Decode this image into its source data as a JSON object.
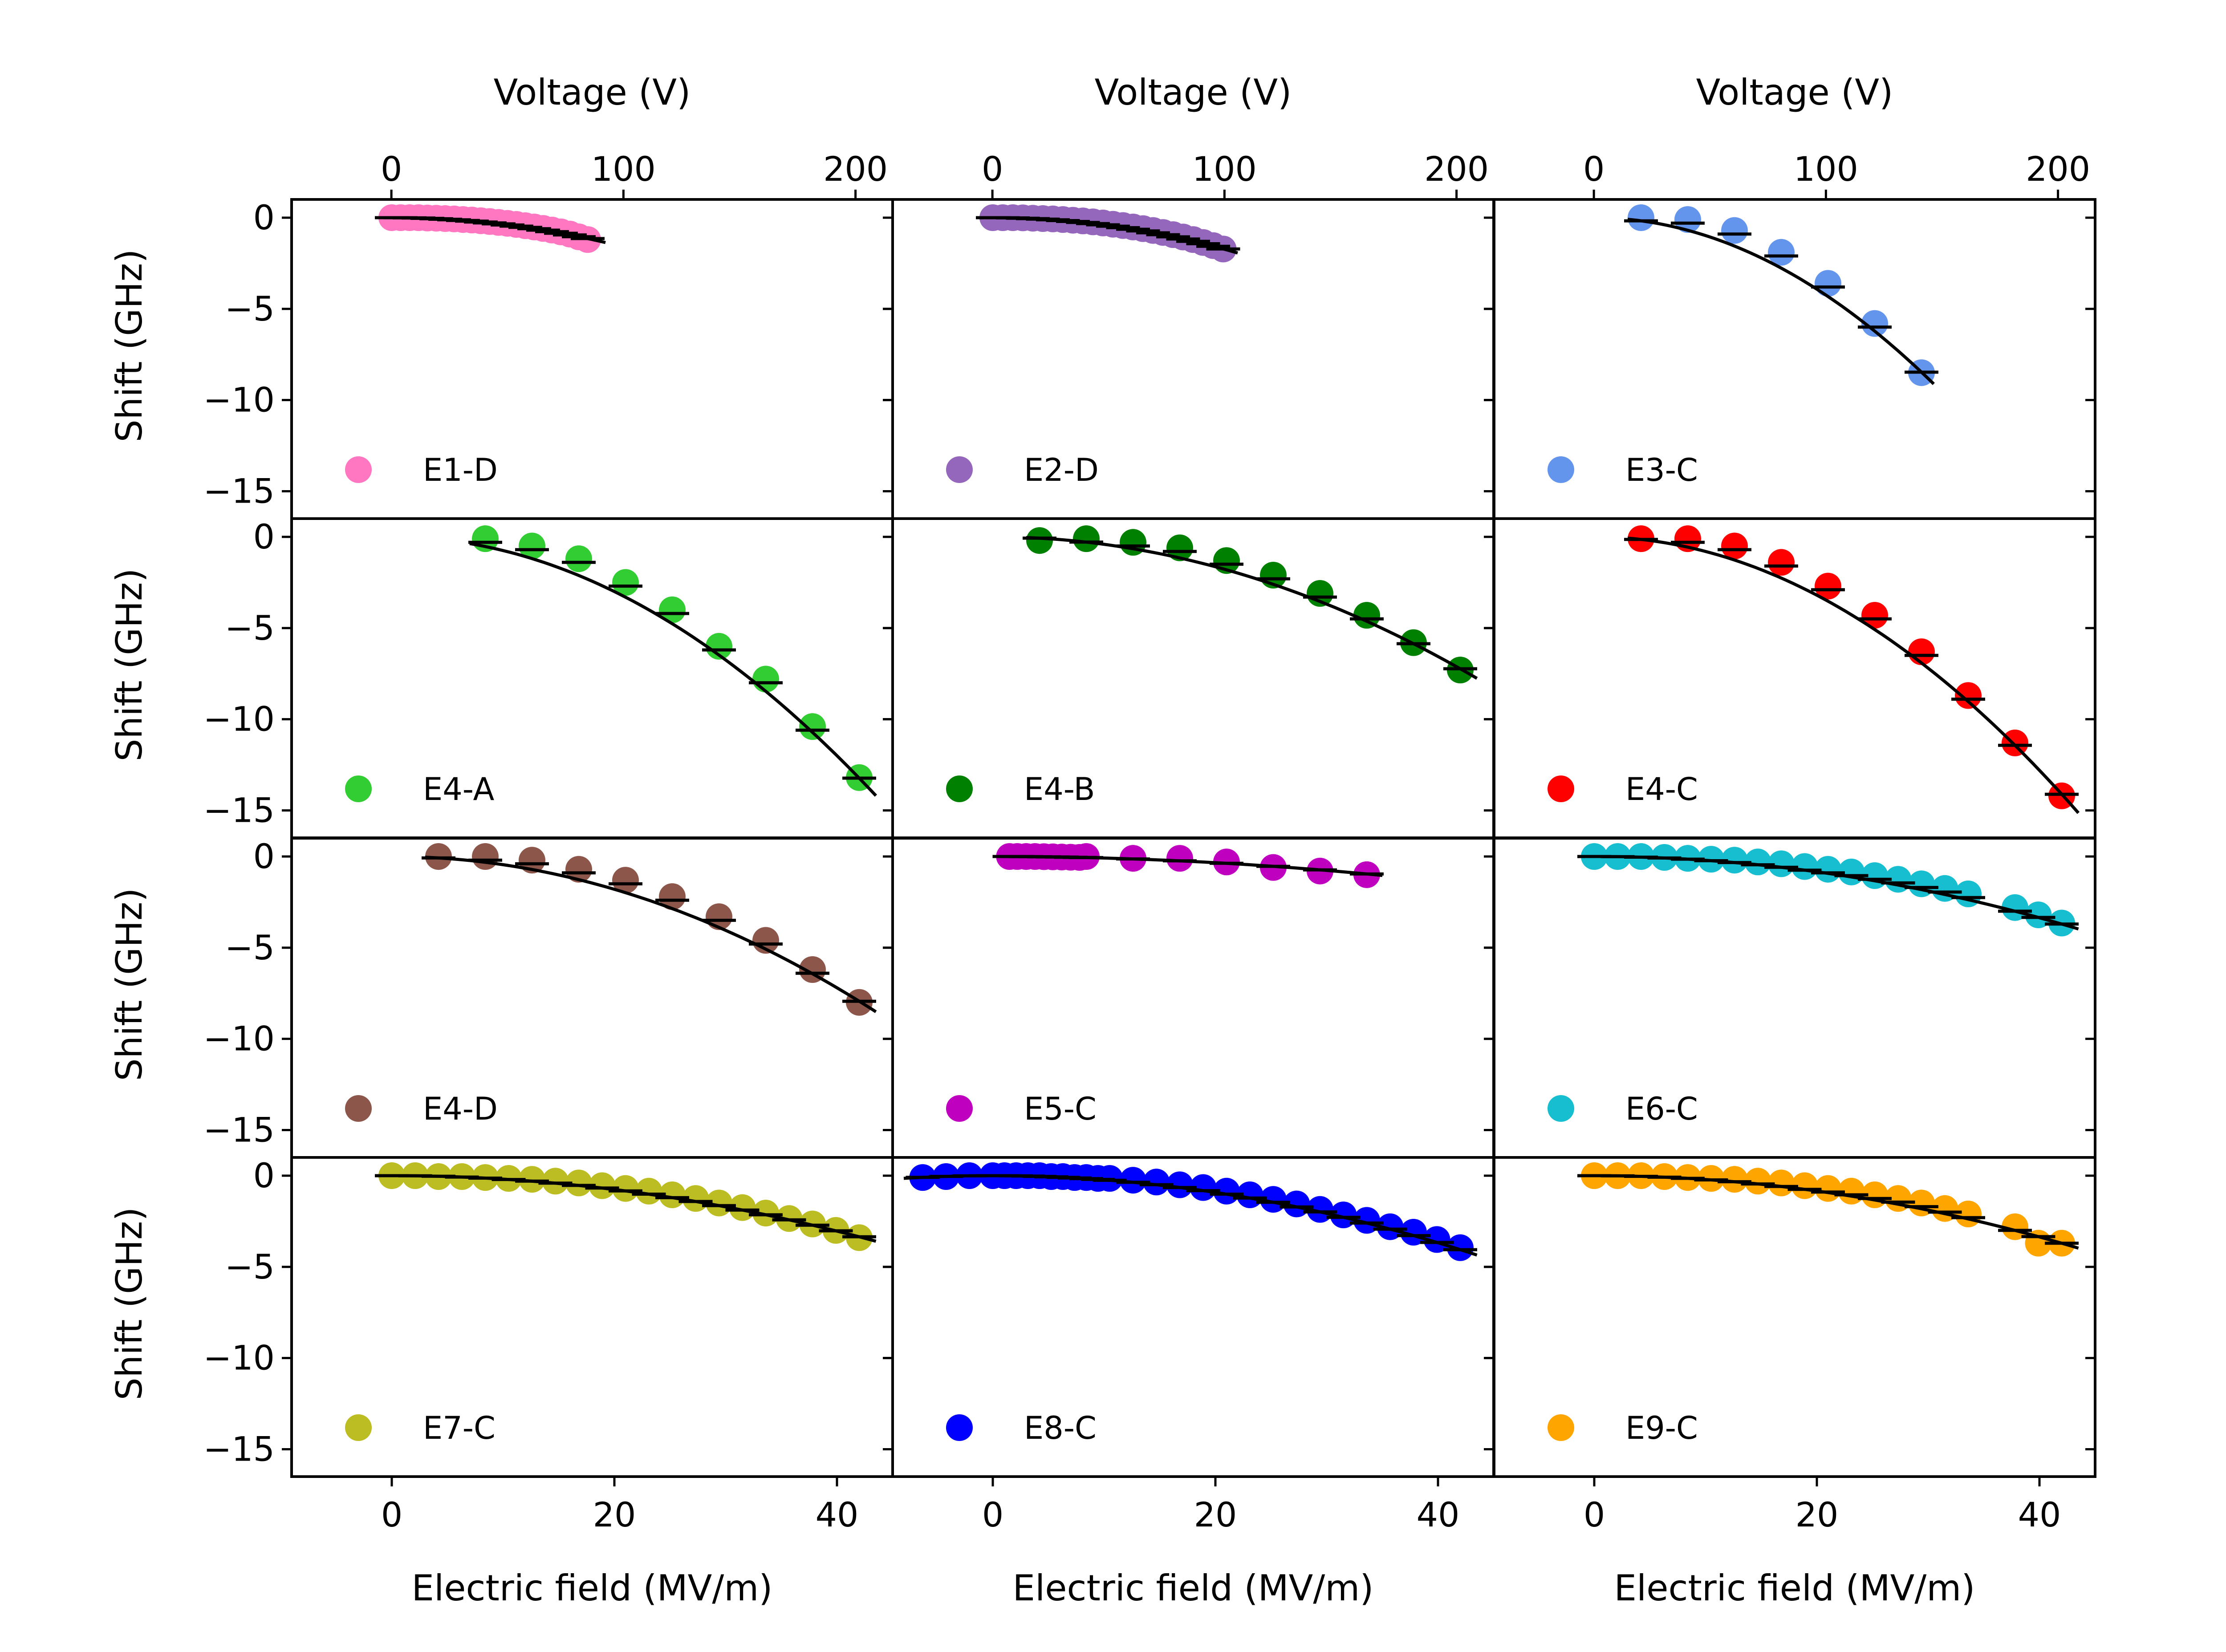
{
  "figure": {
    "top_axis_label": "Voltage (V)",
    "bottom_axis_label": "Electric field (MV/m)",
    "left_axis_label": "Shift (GHz)",
    "top_ticks": [
      "0",
      "100",
      "200"
    ],
    "bottom_ticks": [
      "0",
      "20",
      "40"
    ],
    "left_ticks": [
      "0",
      "−5",
      "−10",
      "−15"
    ]
  },
  "chart_data": {
    "type": "scatter",
    "layout": "grid 4 rows x 3 columns, shared axes",
    "xlabel": "Electric field (MV/m)",
    "x2label": "Voltage (V)",
    "ylabel": "Shift (GHz)",
    "xlim": [
      -9,
      45
    ],
    "x2lim": [
      -43,
      216
    ],
    "ylim": [
      -16.5,
      1
    ],
    "x_ticks": [
      0,
      20,
      40
    ],
    "x2_ticks": [
      0,
      100,
      200
    ],
    "y_ticks": [
      0,
      -5,
      -10,
      -15
    ],
    "fit_line_color": "#000000",
    "legend_position": "lower-left of each panel",
    "series": [
      {
        "name": "E1-D",
        "row": 0,
        "col": 0,
        "color": "#ff77c0",
        "x": [
          0,
          0.8,
          1.6,
          2.4,
          3.2,
          4,
          4.8,
          5.6,
          6.4,
          7.2,
          8,
          8.8,
          9.6,
          10.4,
          11.2,
          12,
          12.8,
          13.6,
          14.4,
          15.2,
          16,
          16.8,
          17.6
        ],
        "y": [
          0,
          0,
          0,
          0,
          -0.02,
          -0.03,
          -0.05,
          -0.07,
          -0.1,
          -0.13,
          -0.17,
          -0.21,
          -0.26,
          -0.31,
          -0.37,
          -0.44,
          -0.51,
          -0.59,
          -0.68,
          -0.78,
          -0.9,
          -1.05,
          -1.2
        ],
        "fit_x": [
          -0.3,
          19.2
        ],
        "fit_a": -0.0037
      },
      {
        "name": "E2-D",
        "row": 0,
        "col": 1,
        "color": "#9467bd",
        "x": [
          0,
          0.9,
          1.8,
          2.7,
          3.6,
          4.5,
          5.4,
          6.3,
          7.2,
          8.1,
          9,
          9.9,
          10.8,
          11.7,
          12.6,
          13.5,
          14.4,
          15.3,
          16.2,
          17.1,
          18,
          18.9,
          19.8,
          20.7
        ],
        "y": [
          0,
          0,
          0,
          -0.01,
          -0.03,
          -0.05,
          -0.07,
          -0.1,
          -0.14,
          -0.18,
          -0.23,
          -0.29,
          -0.36,
          -0.43,
          -0.51,
          -0.6,
          -0.7,
          -0.81,
          -0.93,
          -1.06,
          -1.2,
          -1.36,
          -1.53,
          -1.72
        ],
        "fit_x": [
          -1.2,
          22
        ],
        "fit_a": -0.004
      },
      {
        "name": "E3-C",
        "row": 0,
        "col": 2,
        "color": "#6495ed",
        "x": [
          4.2,
          8.4,
          12.6,
          16.8,
          21,
          25.2,
          29.4
        ],
        "y": [
          0,
          -0.1,
          -0.7,
          -1.9,
          -3.6,
          -5.8,
          -8.5
        ],
        "fit_x": [
          3,
          30.5
        ],
        "fit_a": -0.0098
      },
      {
        "name": "E4-A",
        "row": 1,
        "col": 0,
        "color": "#32cd32",
        "x": [
          8.4,
          12.6,
          16.8,
          21,
          25.2,
          29.4,
          33.6,
          37.8,
          42
        ],
        "y": [
          -0.1,
          -0.5,
          -1.2,
          -2.5,
          -4,
          -6,
          -7.8,
          -10.4,
          -13.2
        ],
        "fit_x": [
          7,
          43.5
        ],
        "fit_a": -0.0075
      },
      {
        "name": "E4-B",
        "row": 1,
        "col": 1,
        "color": "#008000",
        "x": [
          4.2,
          8.4,
          12.6,
          16.8,
          21,
          25.2,
          29.4,
          33.6,
          37.8,
          42
        ],
        "y": [
          -0.2,
          -0.1,
          -0.3,
          -0.6,
          -1.3,
          -2.1,
          -3.1,
          -4.3,
          -5.8,
          -7.3
        ],
        "fit_x": [
          3,
          43.5
        ],
        "fit_a": -0.0041
      },
      {
        "name": "E4-C",
        "row": 1,
        "col": 2,
        "color": "#ff0000",
        "x": [
          4.2,
          8.4,
          12.6,
          16.8,
          21,
          25.2,
          29.4,
          33.6,
          37.8,
          42
        ],
        "y": [
          -0.1,
          -0.1,
          -0.5,
          -1.4,
          -2.7,
          -4.3,
          -6.3,
          -8.7,
          -11.3,
          -14.2
        ],
        "fit_x": [
          3,
          43.5
        ],
        "fit_a": -0.008
      },
      {
        "name": "E4-D",
        "row": 2,
        "col": 0,
        "color": "#8c564b",
        "x": [
          4.2,
          8.4,
          12.6,
          16.8,
          21,
          25.2,
          29.4,
          33.6,
          37.8,
          42
        ],
        "y": [
          0,
          0,
          -0.2,
          -0.7,
          -1.3,
          -2.2,
          -3.3,
          -4.6,
          -6.2,
          -8
        ],
        "fit_x": [
          3,
          43.5
        ],
        "fit_a": -0.0045
      },
      {
        "name": "E5-C",
        "row": 2,
        "col": 1,
        "color": "#bf00bf",
        "x": [
          1.5,
          2.2,
          3,
          3.8,
          4.6,
          5.4,
          6.2,
          7,
          7.8,
          8.4,
          12.6,
          16.8,
          21,
          25.2,
          29.4,
          33.6
        ],
        "y": [
          0,
          0,
          0,
          0,
          -0.01,
          -0.02,
          -0.03,
          -0.04,
          -0.05,
          0,
          -0.1,
          -0.1,
          -0.3,
          -0.6,
          -0.8,
          -1
        ],
        "fit_x": [
          0.5,
          35
        ],
        "fit_a": -0.00085
      },
      {
        "name": "E6-C",
        "row": 2,
        "col": 2,
        "color": "#17becf",
        "x": [
          0,
          2.1,
          4.2,
          6.3,
          8.4,
          10.5,
          12.6,
          14.7,
          16.8,
          18.9,
          21,
          23.1,
          25.2,
          27.3,
          29.4,
          31.5,
          33.6,
          37.8,
          39.9,
          42
        ],
        "y": [
          0,
          0,
          0,
          -0.05,
          -0.1,
          -0.15,
          -0.2,
          -0.3,
          -0.4,
          -0.55,
          -0.7,
          -0.85,
          -1.05,
          -1.25,
          -1.5,
          -1.75,
          -2.05,
          -2.8,
          -3.2,
          -3.65
        ],
        "fit_x": [
          -1.5,
          43.5
        ],
        "fit_a": -0.0021
      },
      {
        "name": "E7-C",
        "row": 3,
        "col": 0,
        "color": "#bcbd22",
        "x": [
          0,
          2.1,
          4.2,
          6.3,
          8.4,
          10.5,
          12.6,
          14.7,
          16.8,
          18.9,
          21,
          23.1,
          25.2,
          27.3,
          29.4,
          31.5,
          33.6,
          35.7,
          37.8,
          39.9,
          42
        ],
        "y": [
          0,
          0,
          -0.05,
          -0.05,
          -0.1,
          -0.15,
          -0.2,
          -0.3,
          -0.4,
          -0.55,
          -0.7,
          -0.85,
          -1.05,
          -1.25,
          -1.5,
          -1.75,
          -2.05,
          -2.35,
          -2.65,
          -3,
          -3.4
        ],
        "fit_x": [
          -1.5,
          43.5
        ],
        "fit_a": -0.0019
      },
      {
        "name": "E8-C",
        "row": 3,
        "col": 1,
        "color": "#0000ff",
        "x": [
          -6.3,
          -4.2,
          -2.1,
          0,
          1.05,
          2.1,
          3.15,
          4.2,
          5.25,
          6.3,
          7.35,
          8.4,
          9.45,
          10.5,
          12.6,
          14.7,
          16.8,
          18.9,
          21,
          23.1,
          25.2,
          27.3,
          29.4,
          31.5,
          33.6,
          35.7,
          37.8,
          39.9,
          42
        ],
        "y": [
          -0.1,
          -0.05,
          0,
          0,
          0,
          0,
          0,
          0,
          -0.05,
          -0.05,
          -0.1,
          -0.1,
          -0.15,
          -0.15,
          -0.25,
          -0.35,
          -0.5,
          -0.65,
          -0.85,
          -1.05,
          -1.3,
          -1.55,
          -1.85,
          -2.15,
          -2.45,
          -2.8,
          -3.1,
          -3.5,
          -3.95
        ],
        "fit_x": [
          -8,
          43.5
        ],
        "fit_a": -0.0023
      },
      {
        "name": "E9-C",
        "row": 3,
        "col": 2,
        "color": "#ffa500",
        "x": [
          0,
          2.1,
          4.2,
          6.3,
          8.4,
          10.5,
          12.6,
          14.7,
          16.8,
          18.9,
          21,
          23.1,
          25.2,
          27.3,
          29.4,
          31.5,
          33.6,
          37.8,
          39.9,
          42
        ],
        "y": [
          0,
          0,
          0,
          -0.05,
          -0.1,
          -0.15,
          -0.2,
          -0.3,
          -0.4,
          -0.55,
          -0.7,
          -0.85,
          -1.05,
          -1.25,
          -1.5,
          -1.8,
          -2.1,
          -2.8,
          -3.7,
          -3.7
        ],
        "fit_x": [
          -1.5,
          43.5
        ],
        "fit_a": -0.0021
      }
    ]
  }
}
